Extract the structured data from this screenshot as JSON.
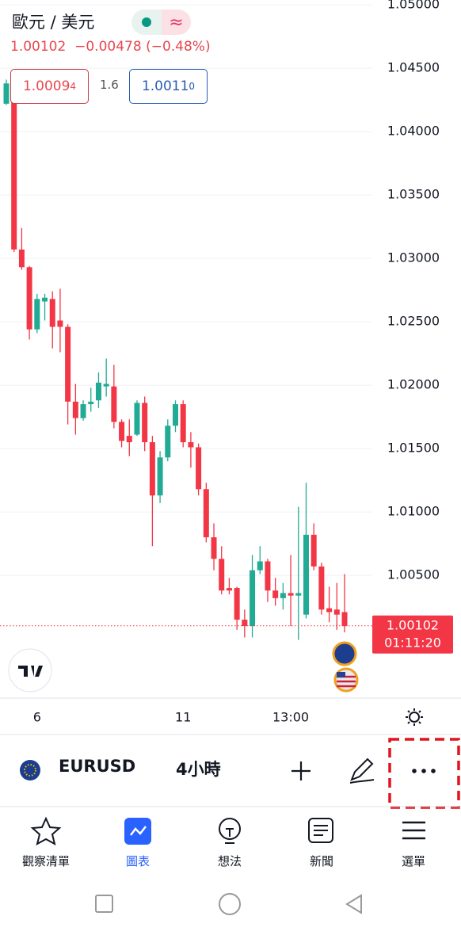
{
  "header": {
    "title": "歐元 / 美元",
    "mode": "≈",
    "price": "1.00102",
    "change": "−0.00478 (−0.48%)",
    "sell": {
      "main": "1.0009",
      "sup": "4"
    },
    "spread": "1.6",
    "buy": {
      "main": "1.0011",
      "sup": "0"
    }
  },
  "chart_data": {
    "type": "candlestick",
    "categories": [
      null,
      null,
      null,
      null,
      "6",
      null,
      null,
      null,
      null,
      null,
      null,
      null,
      null,
      null,
      null,
      null,
      null,
      null,
      null,
      null,
      null,
      null,
      null,
      "11",
      null,
      null,
      null,
      null,
      null,
      null,
      null,
      null,
      null,
      null,
      null,
      null,
      null,
      "13:00",
      null,
      null,
      null,
      null,
      null,
      null,
      null
    ],
    "open": [
      1.0422,
      1.0438,
      1.0307,
      1.0293,
      1.0244,
      1.0266,
      1.0268,
      1.0251,
      1.0246,
      1.0187,
      1.0174,
      1.0185,
      1.0188,
      1.0199,
      1.0199,
      1.0171,
      1.016,
      1.0161,
      1.0186,
      1.0155,
      1.0113,
      1.0143,
      1.0168,
      1.0185,
      1.0155,
      1.0151,
      1.0118,
      1.008,
      1.0063,
      1.004,
      1.004,
      1.0015,
      1.001,
      1.0054,
      1.0061,
      1.0038,
      1.0032,
      1.0036,
      1.0034,
      1.0019,
      1.0082,
      1.0057,
      1.0024,
      1.0023,
      1.0021
    ],
    "high": [
      1.0441,
      1.0444,
      1.0324,
      1.0294,
      1.0272,
      1.0272,
      1.0274,
      1.0276,
      1.0248,
      1.0201,
      1.0188,
      1.0198,
      1.021,
      1.0221,
      1.0216,
      1.0173,
      1.0173,
      1.0188,
      1.0191,
      1.016,
      1.0148,
      1.0173,
      1.0188,
      1.0188,
      1.0163,
      1.0154,
      1.0123,
      1.0091,
      1.0073,
      1.0048,
      1.0041,
      1.0023,
      1.0066,
      1.0073,
      1.0063,
      1.0048,
      1.0044,
      1.0066,
      1.0104,
      1.0123,
      1.0091,
      1.006,
      1.0041,
      1.0044,
      1.0051
    ],
    "low": [
      1.0421,
      1.0305,
      1.0291,
      1.0236,
      1.0241,
      1.0251,
      1.0229,
      1.0226,
      1.0169,
      1.0161,
      1.0172,
      1.0179,
      1.0182,
      1.0191,
      1.0166,
      1.0151,
      1.0144,
      1.016,
      1.0148,
      1.0073,
      1.0107,
      1.014,
      1.0163,
      1.0151,
      1.0135,
      1.0113,
      1.0076,
      1.0054,
      1.0035,
      1.0035,
      1.0007,
      1.0001,
      1.0001,
      1.0051,
      1.0029,
      1.0026,
      1.0023,
      1.001,
      0.9999,
      1.0016,
      1.0054,
      1.0019,
      1.0013,
      1.0007,
      1.0005
    ],
    "close": [
      1.0438,
      1.0307,
      1.0293,
      1.0244,
      1.0268,
      1.0269,
      1.0246,
      1.0246,
      1.0187,
      1.0174,
      1.0185,
      1.0187,
      1.0202,
      1.0201,
      1.0171,
      1.0156,
      1.0155,
      1.0186,
      1.0155,
      1.0113,
      1.0143,
      1.0168,
      1.0185,
      1.0155,
      1.0151,
      1.0118,
      1.008,
      1.0063,
      1.0038,
      1.0038,
      1.0015,
      1.001,
      1.0054,
      1.0061,
      1.0038,
      1.0032,
      1.0036,
      1.0034,
      1.0036,
      1.0082,
      1.0057,
      1.0023,
      1.0021,
      1.0019,
      1.001
    ],
    "up_color": "#22ab94",
    "down_color": "#f23645",
    "ylim": [
      0.99538,
      1.05038
    ],
    "yticks": [
      {
        "value": 1.05,
        "label": "1.05000"
      },
      {
        "value": 1.045,
        "label": "1.04500"
      },
      {
        "value": 1.04,
        "label": "1.04000"
      },
      {
        "value": 1.035,
        "label": "1.03500"
      },
      {
        "value": 1.03,
        "label": "1.03000"
      },
      {
        "value": 1.025,
        "label": "1.02500"
      },
      {
        "value": 1.02,
        "label": "1.02000"
      },
      {
        "value": 1.015,
        "label": "1.01500"
      },
      {
        "value": 1.01,
        "label": "1.01000"
      },
      {
        "value": 1.005,
        "label": "1.00500"
      }
    ],
    "grid": true,
    "last_price": 1.00102,
    "countdown": "01:11:20"
  },
  "toolbar": {
    "symbol": "EURUSD",
    "interval": "4小時"
  },
  "nav": [
    "觀察清單",
    "圖表",
    "想法",
    "新聞",
    "選單"
  ]
}
